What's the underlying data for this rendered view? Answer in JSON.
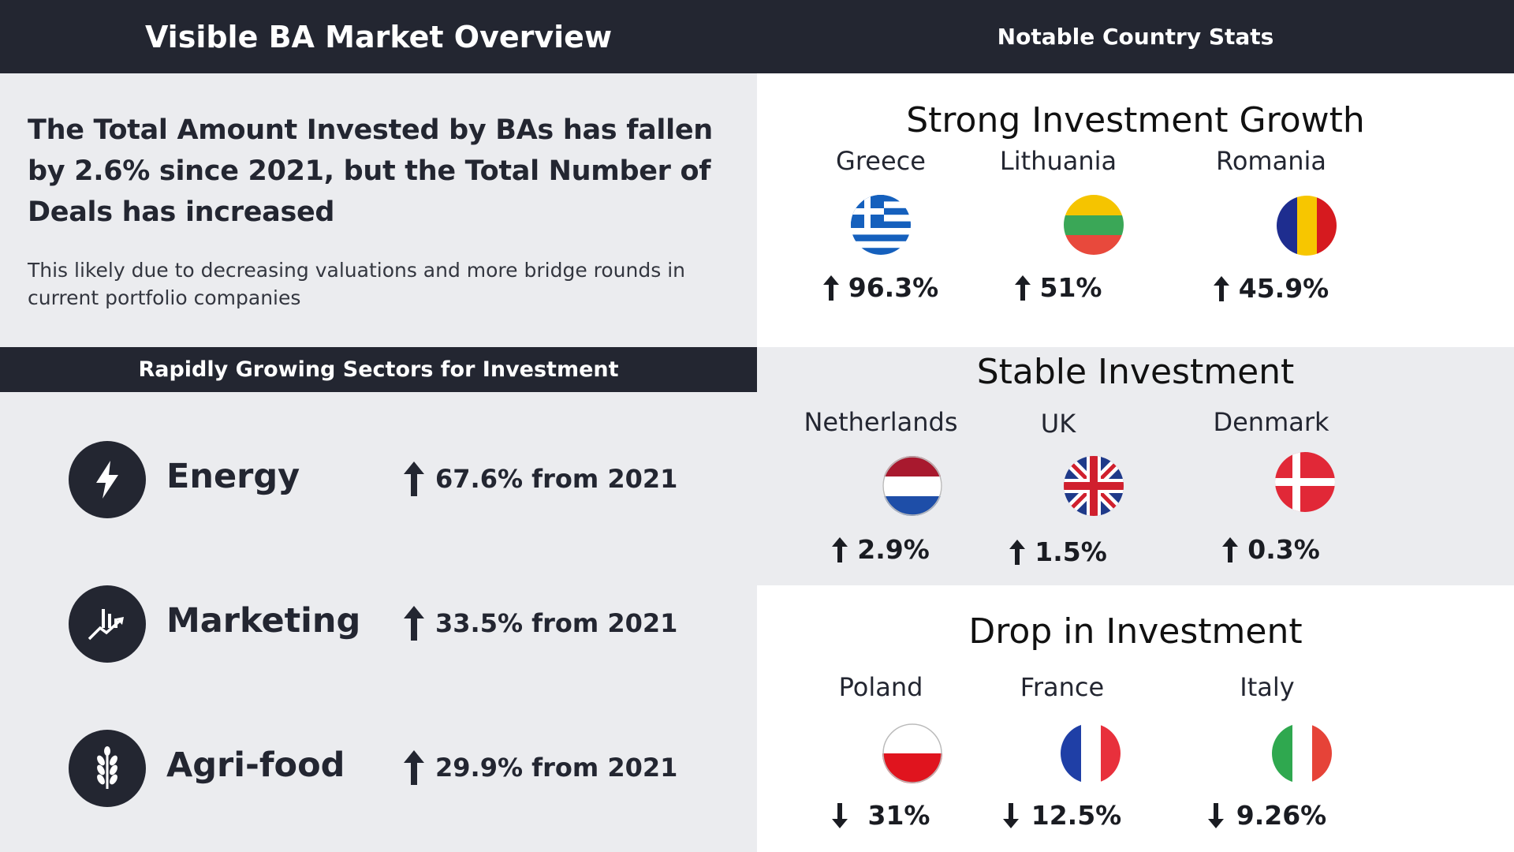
{
  "header": {
    "left_title": "Visible BA Market Overview",
    "right_title": "Notable Country Stats"
  },
  "summary": {
    "headline": "The Total Amount Invested by BAs has fallen by 2.6% since 2021, but the Total Number of Deals has increased",
    "subtext": "This likely due to decreasing valuations and more bridge rounds in current portfolio companies"
  },
  "sectors": {
    "title": "Rapidly Growing Sectors for Investment",
    "items": [
      {
        "name": "Energy",
        "change": "67.6% from 2021",
        "icon": "lightning-icon",
        "direction": "up"
      },
      {
        "name": "Marketing",
        "change": "33.5% from 2021",
        "icon": "growth-chart-icon",
        "direction": "up"
      },
      {
        "name": "Agri-food",
        "change": "29.9% from 2021",
        "icon": "wheat-icon",
        "direction": "up"
      }
    ]
  },
  "groups": [
    {
      "title": "Strong Investment Growth",
      "countries": [
        {
          "name": "Greece",
          "value": "96.3%",
          "direction": "up",
          "flag": "greece-flag-icon"
        },
        {
          "name": "Lithuania",
          "value": "51%",
          "direction": "up",
          "flag": "lithuania-flag-icon"
        },
        {
          "name": "Romania",
          "value": "45.9%",
          "direction": "up",
          "flag": "romania-flag-icon"
        }
      ]
    },
    {
      "title": "Stable Investment",
      "countries": [
        {
          "name": "Netherlands",
          "value": "2.9%",
          "direction": "up",
          "flag": "netherlands-flag-icon"
        },
        {
          "name": "UK",
          "value": "1.5%",
          "direction": "up",
          "flag": "uk-flag-icon"
        },
        {
          "name": "Denmark",
          "value": "0.3%",
          "direction": "up",
          "flag": "denmark-flag-icon"
        }
      ]
    },
    {
      "title": "Drop in Investment",
      "countries": [
        {
          "name": "Poland",
          "value": "31%",
          "direction": "down",
          "flag": "poland-flag-icon"
        },
        {
          "name": "France",
          "value": "12.5%",
          "direction": "down",
          "flag": "france-flag-icon"
        },
        {
          "name": "Italy",
          "value": "9.26%",
          "direction": "down",
          "flag": "italy-flag-icon"
        }
      ]
    }
  ],
  "colors": {
    "dark": "#232631",
    "light_panel": "#ebecef",
    "white": "#ffffff"
  }
}
